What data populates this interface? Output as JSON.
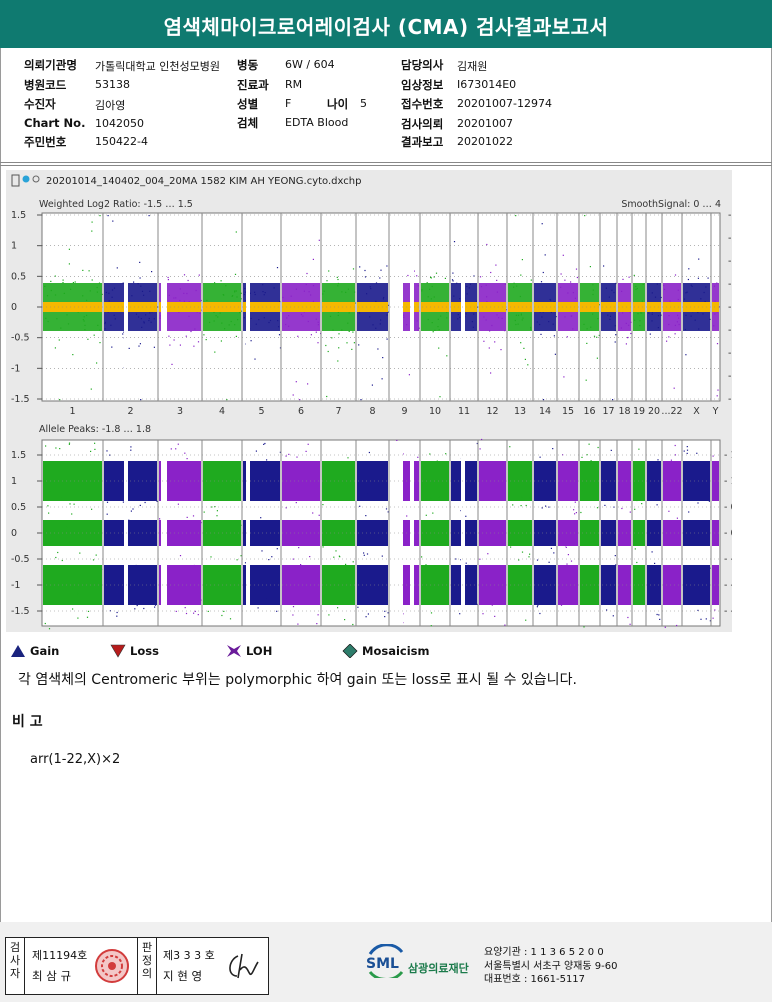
{
  "title": "염색체마이크로어레이검사 (CMA) 검사결과보고서",
  "info": {
    "col1": [
      {
        "label": "의뢰기관명",
        "value": "가톨릭대학교 인천성모병원"
      },
      {
        "label": "병원코드",
        "value": "53138"
      },
      {
        "label": "수진자",
        "value": "김아영"
      },
      {
        "label": "Chart No.",
        "value": "1042050"
      },
      {
        "label": "주민번호",
        "value": "150422-4"
      }
    ],
    "col2": [
      {
        "label": "병동",
        "value": "6W / 604"
      },
      {
        "label": "진료과",
        "value": "RM"
      },
      {
        "label": "성별",
        "value": "F"
      },
      {
        "label": "검체",
        "value": "EDTA Blood"
      }
    ],
    "age": {
      "label": "나이",
      "value": "5"
    },
    "col3": [
      {
        "label": "담당의사",
        "value": "김재원"
      },
      {
        "label": "임상정보",
        "value": "I673014E0"
      },
      {
        "label": "접수번호",
        "value": "20201007-12974"
      },
      {
        "label": "검사의뢰",
        "value": "20201007"
      },
      {
        "label": "결과보고",
        "value": "20201022"
      }
    ]
  },
  "plot": {
    "filename": "20201014_140402_004_20MA 1582 KIM AH YEONG.cyto.dxchp",
    "panel1_title": "Weighted Log2 Ratio: -1.5 … 1.5",
    "panel1_right_title": "SmoothSignal: 0 … 4",
    "panel1_left_ticks": [
      "1.5",
      "1",
      "0.5",
      "0",
      "-0.5",
      "-1",
      "-1.5"
    ],
    "panel1_right_ticks": [
      "4",
      "3.5",
      "3",
      "2.5",
      "2",
      "1.5",
      "1",
      "0.5",
      "0"
    ],
    "chromosomes": [
      "1",
      "2",
      "3",
      "4",
      "5",
      "6",
      "7",
      "8",
      "9",
      "10",
      "11",
      "12",
      "13",
      "14",
      "15",
      "16",
      "17",
      "18",
      "19",
      "20",
      "...22",
      "X",
      "Y"
    ],
    "panel2_title": "Allele Peaks: -1.8 … 1.8",
    "panel2_left_ticks": [
      "1.5",
      "1",
      "0.5",
      "0",
      "-0.5",
      "-1",
      "-1.5"
    ],
    "panel2_right_ticks": [
      "1.5",
      "1",
      "0.5",
      "0",
      "-0.5",
      "-1",
      "-1.5"
    ]
  },
  "legend": [
    {
      "label": "Gain",
      "icon": "triangle-up-icon",
      "color": "#1a237e"
    },
    {
      "label": "Loss",
      "icon": "triangle-down-icon",
      "color": "#b71c1c"
    },
    {
      "label": "LOH",
      "icon": "star-x-icon",
      "color": "#6a1b9a"
    },
    {
      "label": "Mosaicism",
      "icon": "diamond-icon",
      "color": "#2e7d6b"
    }
  ],
  "note": "각 염색체의 Centromeric 부위는 polymorphic 하여 gain 또는 loss로 표시 될 수 있습니다.",
  "remark_title": "비 고",
  "remark": "arr(1-22,X)×2",
  "footer": {
    "inspector_label": "검사자",
    "inspector_no": "제11194호",
    "inspector_name": "최 삼 규",
    "reviewer_label": "판정의",
    "reviewer_no": "제3 3 3 호",
    "reviewer_name": "지 현 영",
    "logo_text": "SML",
    "org_name": "삼광의료재단",
    "agency_code": "요양기관 : 1 1 3 6 5 2 0 0",
    "address": "서울특별시 서초구 양재동 9-60",
    "phone": "대표번호 : 1661-5117"
  },
  "colors": {
    "header": "#0f7a70",
    "green": "#1faa1f",
    "navy": "#1a1a8c",
    "purple": "#8a22c8",
    "orange": "#f5b800"
  }
}
